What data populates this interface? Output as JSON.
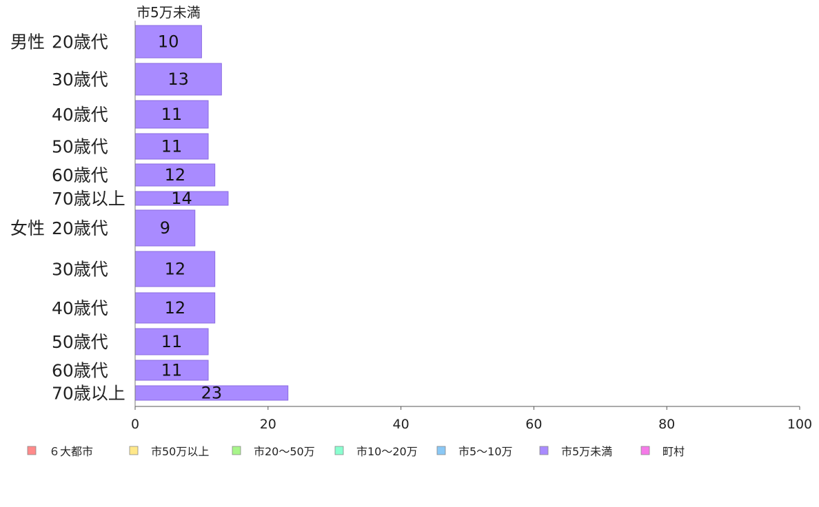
{
  "chart_data": {
    "type": "bar",
    "orientation": "horizontal",
    "title": "市5万未満",
    "categories": [
      {
        "group": "男性",
        "age": "20歳代"
      },
      {
        "group": "",
        "age": "30歳代"
      },
      {
        "group": "",
        "age": "40歳代"
      },
      {
        "group": "",
        "age": "50歳代"
      },
      {
        "group": "",
        "age": "60歳代"
      },
      {
        "group": "",
        "age": "70歳以上"
      },
      {
        "group": "女性",
        "age": "20歳代"
      },
      {
        "group": "",
        "age": "30歳代"
      },
      {
        "group": "",
        "age": "40歳代"
      },
      {
        "group": "",
        "age": "50歳代"
      },
      {
        "group": "",
        "age": "60歳代"
      },
      {
        "group": "",
        "age": "70歳以上"
      }
    ],
    "values": [
      10,
      13,
      11,
      11,
      12,
      14,
      9,
      12,
      12,
      11,
      11,
      23
    ],
    "bar_color": "#a98bff",
    "bar_stroke": "#8a6be0",
    "xlim": [
      0,
      100
    ],
    "xticks": [
      "0",
      "20",
      "40",
      "60",
      "80",
      "100"
    ],
    "grid": false,
    "legend_position": "bottom",
    "legend": [
      {
        "label": "６大都市",
        "color": "#ff8a8a"
      },
      {
        "label": "市50万以上",
        "color": "#ffe88a"
      },
      {
        "label": "市20～50万",
        "color": "#a8f58a"
      },
      {
        "label": "市10～20万",
        "color": "#8affd0"
      },
      {
        "label": "市5～10万",
        "color": "#8ac8f5"
      },
      {
        "label": "市5万未満",
        "color": "#a98bff"
      },
      {
        "label": "町村",
        "color": "#f57ae8"
      }
    ]
  }
}
